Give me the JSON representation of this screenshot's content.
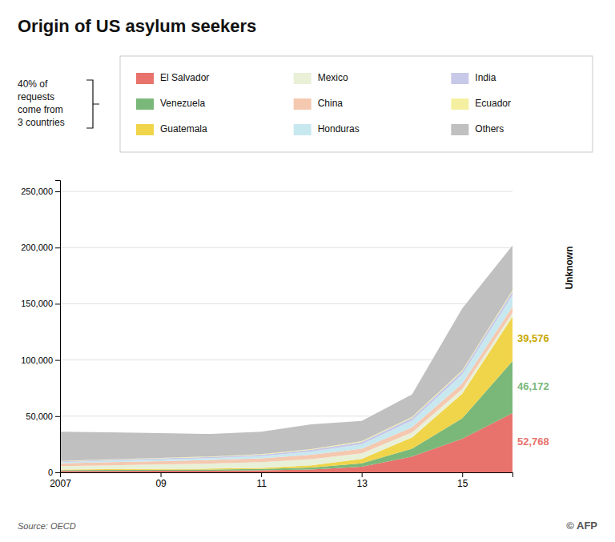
{
  "chart_data": {
    "type": "area",
    "stacked": true,
    "title": "Origin of US asylum seekers",
    "x": [
      2007,
      2008,
      2009,
      2010,
      2011,
      2012,
      2013,
      2014,
      2015,
      2016
    ],
    "series": [
      {
        "name": "El Salvador",
        "color": "#e8736c",
        "values": [
          1200,
          1300,
          1400,
          1500,
          1800,
          2500,
          5000,
          14000,
          30000,
          52768
        ]
      },
      {
        "name": "Venezuela",
        "color": "#7ab87a",
        "values": [
          800,
          900,
          950,
          1000,
          1200,
          1800,
          3000,
          7000,
          18000,
          46172
        ]
      },
      {
        "name": "Guatemala",
        "color": "#f0d44a",
        "values": [
          500,
          600,
          700,
          800,
          1000,
          2000,
          4000,
          10000,
          22000,
          39576
        ]
      },
      {
        "name": "Mexico",
        "color": "#e8f0d8",
        "values": [
          3000,
          3500,
          4000,
          4500,
          5000,
          5500,
          5000,
          4500,
          4000,
          3500
        ]
      },
      {
        "name": "China",
        "color": "#f5c8b0",
        "values": [
          2500,
          2800,
          3000,
          3200,
          3500,
          3800,
          4000,
          4500,
          5000,
          5500
        ]
      },
      {
        "name": "Honduras",
        "color": "#c8e8f0",
        "values": [
          1000,
          1200,
          1400,
          1600,
          2000,
          3000,
          4000,
          6000,
          8000,
          10000
        ]
      },
      {
        "name": "India",
        "color": "#c8c8e8",
        "values": [
          800,
          900,
          1000,
          1100,
          1200,
          1500,
          2000,
          2500,
          3000,
          3500
        ]
      },
      {
        "name": "Ecuador",
        "color": "#f5f0a0",
        "values": [
          300,
          350,
          400,
          450,
          500,
          600,
          700,
          800,
          900,
          1000
        ]
      },
      {
        "name": "Others",
        "color": "#c0c0c0",
        "values": [
          26000,
          24000,
          22000,
          20000,
          20000,
          22000,
          18000,
          20000,
          55000,
          40000
        ]
      }
    ],
    "xlim": [
      2007,
      2016
    ],
    "xticks": [
      2007,
      {
        "value": 2009,
        "label": "09"
      },
      {
        "value": 2011,
        "label": "11"
      },
      {
        "value": 2013,
        "label": "13"
      },
      {
        "value": 2015,
        "label": "15"
      }
    ],
    "ylim": [
      0,
      260000
    ],
    "yticks": [
      0,
      {
        "value": 50000,
        "label": "50,000"
      },
      {
        "value": 100000,
        "label": "100,000"
      },
      {
        "value": 150000,
        "label": "150,000"
      },
      {
        "value": 200000,
        "label": "200,000"
      },
      {
        "value": 250000,
        "label": "250,000"
      }
    ],
    "grid": "y",
    "legend": "top",
    "annotations": [
      {
        "text": "52,768",
        "series": "El Salvador",
        "color": "#e8736c"
      },
      {
        "text": "46,172",
        "series": "Venezuela",
        "color": "#7ab87a"
      },
      {
        "text": "39,576",
        "series": "Guatemala",
        "color": "#c8a800"
      }
    ],
    "side_label": {
      "text": "Unknown",
      "series": "Others"
    },
    "note": "40% of\nrequests\ncome from\n3 countries",
    "source": "Source: OECD",
    "credit": "© AFP"
  }
}
